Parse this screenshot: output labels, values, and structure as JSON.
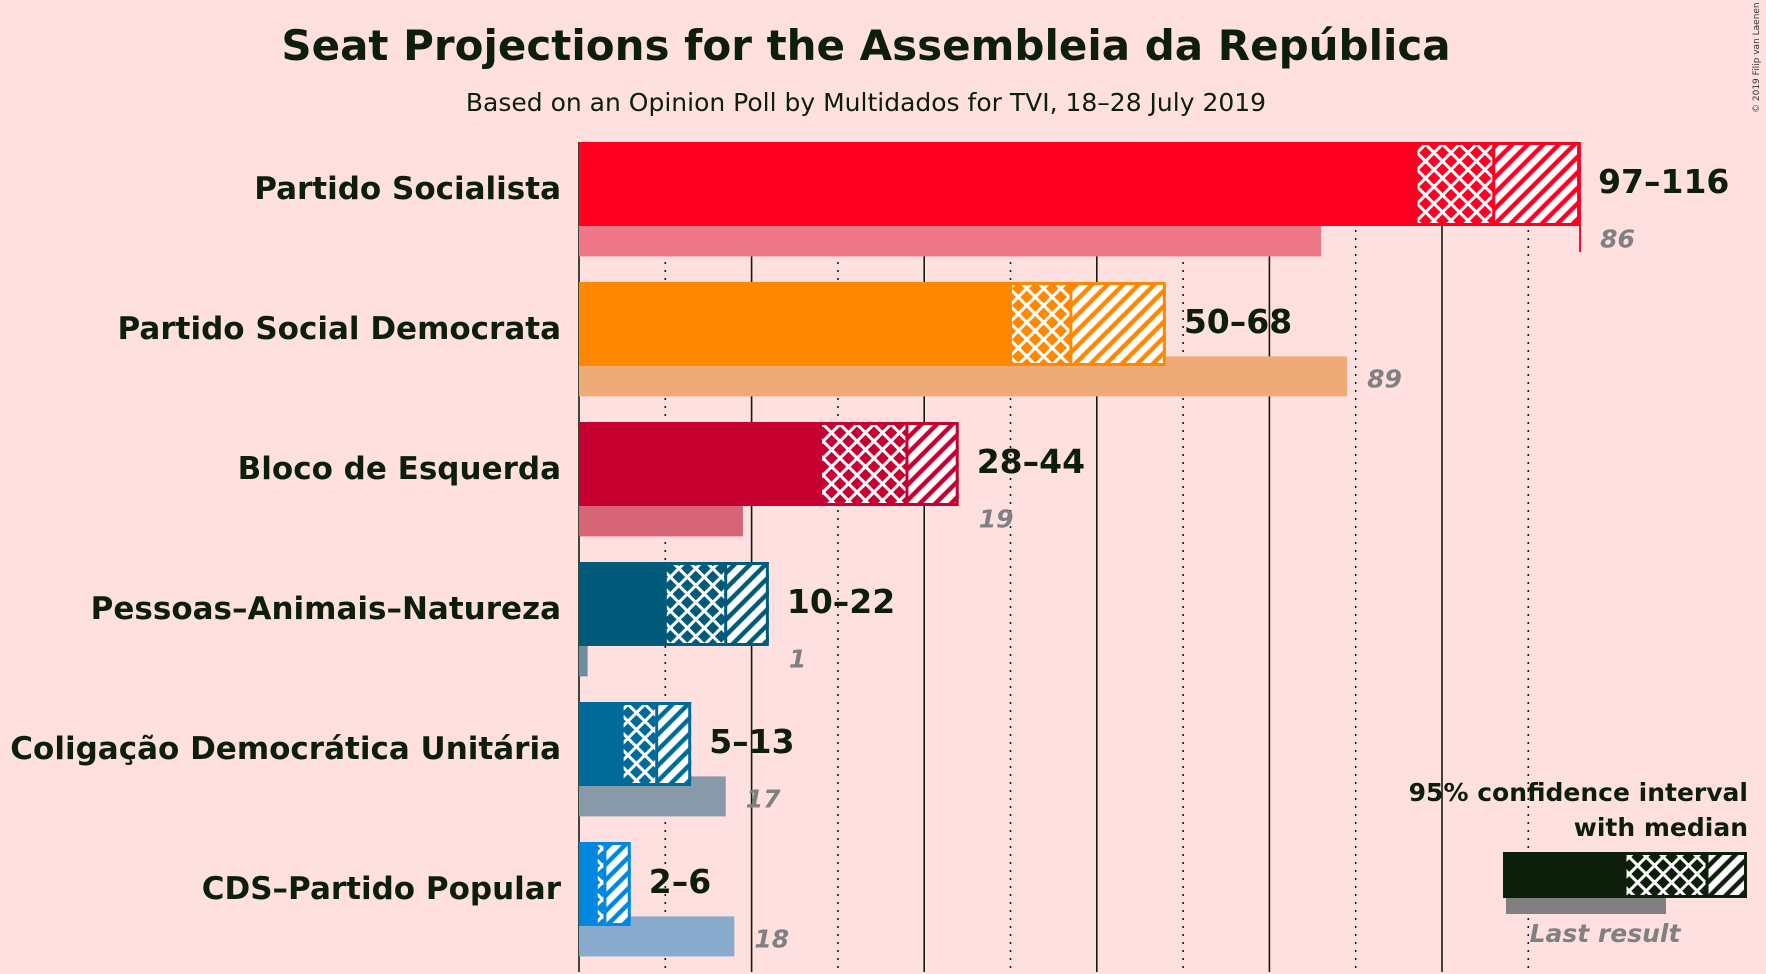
{
  "chart_data": {
    "type": "bar",
    "orientation": "horizontal",
    "title": "Seat Projections for the Assembleia da República",
    "subtitle": "Based on an Opinion Poll by Multidados for TVI, 18–28 July 2019",
    "copyright": "© 2019 Filip van Laenen",
    "majority_marker": 116,
    "xlim": [
      0,
      116
    ],
    "gridlines": {
      "solid": [
        0,
        20,
        40,
        60,
        80,
        100
      ],
      "dotted": [
        10,
        30,
        50,
        70,
        90,
        110
      ]
    },
    "categories": [
      "Partido Socialista",
      "Partido Social Democrata",
      "Bloco de Esquerda",
      "Pessoas–Animais–Natureza",
      "Coligação Democrática Unitária",
      "CDS–Partido Popular"
    ],
    "series": [
      {
        "name": "Seats",
        "values": [
          {
            "low": 97,
            "median": 106,
            "high": 116,
            "label": "97–116",
            "color": "#ff0022"
          },
          {
            "low": 50,
            "median": 57,
            "high": 68,
            "label": "50–68",
            "color": "#ff8800"
          },
          {
            "low": 28,
            "median": 38,
            "high": 44,
            "label": "28–44",
            "color": "#c70032"
          },
          {
            "low": 10,
            "median": 17,
            "high": 22,
            "label": "10–22",
            "color": "#005a7a"
          },
          {
            "low": 5,
            "median": 9,
            "high": 13,
            "label": "5–13",
            "color": "#006b99"
          },
          {
            "low": 2,
            "median": 3,
            "high": 6,
            "label": "2–6",
            "color": "#0088e0"
          }
        ]
      },
      {
        "name": "Last result",
        "values": [
          {
            "value": 86,
            "label": "86",
            "color": "#ee7788"
          },
          {
            "value": 89,
            "label": "89",
            "color": "#eeaa77"
          },
          {
            "value": 19,
            "label": "19",
            "color": "#d66677"
          },
          {
            "value": 1,
            "label": "1",
            "color": "#6f8fa0"
          },
          {
            "value": 17,
            "label": "17",
            "color": "#8899aa"
          },
          {
            "value": 18,
            "label": "18",
            "color": "#88aacc"
          }
        ]
      }
    ],
    "legend": {
      "position": "bottom-right",
      "line1": "95% confidence interval",
      "line2": "with median",
      "last_result": "Last result",
      "color": "#0d1f0a",
      "last_color": "#808080"
    }
  }
}
